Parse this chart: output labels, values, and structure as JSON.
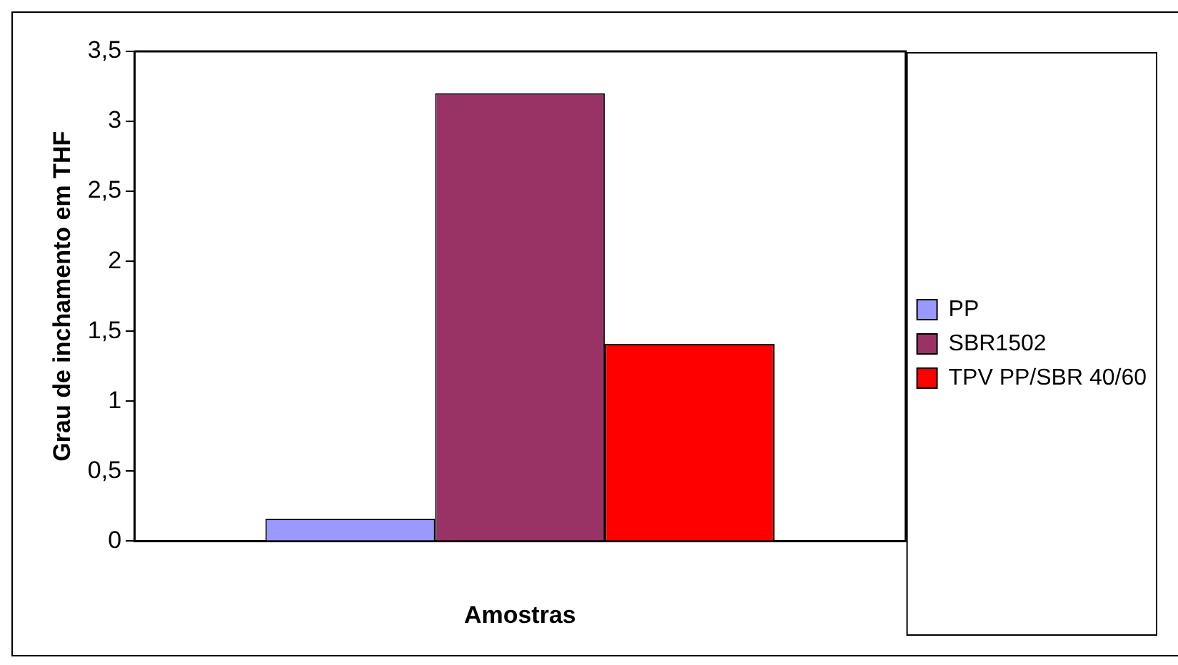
{
  "chart_data": {
    "type": "bar",
    "xlabel": "Amostras",
    "ylabel": "Grau de inchamento em THF",
    "categories": [
      null
    ],
    "series": [
      {
        "name": "PP",
        "color": "#9999ff",
        "values": [
          0.16
        ]
      },
      {
        "name": "SBR1502",
        "color": "#993366",
        "values": [
          3.2
        ]
      },
      {
        "name": "TPV PP/SBR 40/60",
        "color": "#ff0000",
        "values": [
          1.41
        ]
      }
    ],
    "ylim": [
      0,
      3.5
    ],
    "yticks": [
      0,
      {
        "value": 0.5,
        "label": "0,5"
      },
      1,
      {
        "value": 1.5,
        "label": "1,5"
      },
      2,
      {
        "value": 2.5,
        "label": "2,5"
      },
      3,
      {
        "value": 3.5,
        "label": "3,5"
      }
    ],
    "grid": false,
    "legend": "right"
  }
}
